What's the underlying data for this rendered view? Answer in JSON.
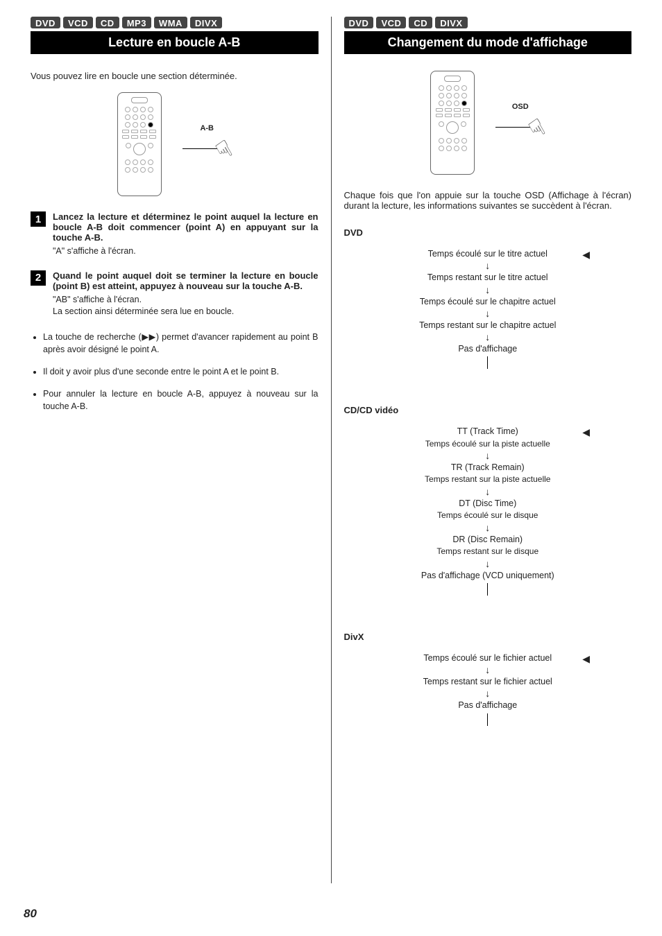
{
  "page_number": "80",
  "left": {
    "badges": [
      "DVD",
      "VCD",
      "CD",
      "MP3",
      "WMA",
      "DIVX"
    ],
    "title": "Lecture en boucle A-B",
    "intro": "Vous pouvez lire en boucle une section déterminée.",
    "callout_label": "A-B",
    "steps": [
      {
        "num": "1",
        "title": "Lancez la lecture et déterminez le point auquel la lecture en boucle A-B doit commencer (point A) en appuyant sur la touche A-B.",
        "notes": [
          "\"A\" s'affiche à l'écran."
        ]
      },
      {
        "num": "2",
        "title": "Quand le point auquel doit se terminer la lecture en boucle (point B) est atteint, appuyez à nouveau sur la touche A-B.",
        "notes": [
          "\"AB\" s'affiche à l'écran.",
          "La section ainsi déterminée sera lue en boucle."
        ]
      }
    ],
    "bullets": [
      "La touche de recherche (▶▶) permet d'avancer rapidement au point B après avoir désigné le point A.",
      "Il doit y avoir plus d'une seconde entre le point A et le point B.",
      "Pour annuler la lecture en boucle A-B, appuyez à nouveau sur la touche A-B."
    ]
  },
  "right": {
    "badges": [
      "DVD",
      "VCD",
      "CD",
      "DIVX"
    ],
    "title": "Changement du mode d'affichage",
    "callout_label": "OSD",
    "intro": "Chaque fois que l'on appuie sur la touche OSD (Affichage à l'écran) durant la lecture, les informations suivantes se succèdent à l'écran.",
    "groups": [
      {
        "heading": "DVD",
        "items": [
          {
            "main": "Temps écoulé sur le titre actuel"
          },
          {
            "main": "Temps restant sur le titre actuel"
          },
          {
            "main": "Temps écoulé sur le chapitre actuel"
          },
          {
            "main": "Temps restant sur le chapitre actuel"
          },
          {
            "main": "Pas d'affichage"
          }
        ]
      },
      {
        "heading": "CD/CD vidéo",
        "items": [
          {
            "main": "TT (Track Time)",
            "sub": "Temps écoulé sur la piste actuelle"
          },
          {
            "main": "TR (Track Remain)",
            "sub": "Temps restant sur la piste actuelle"
          },
          {
            "main": "DT (Disc Time)",
            "sub": "Temps écoulé sur le disque"
          },
          {
            "main": "DR (Disc Remain)",
            "sub": "Temps restant sur le disque"
          },
          {
            "main": "Pas d'affichage (VCD uniquement)"
          }
        ]
      },
      {
        "heading": "DivX",
        "items": [
          {
            "main": "Temps écoulé sur le fichier actuel"
          },
          {
            "main": "Temps restant sur le fichier actuel"
          },
          {
            "main": "Pas d'affichage"
          }
        ]
      }
    ]
  }
}
